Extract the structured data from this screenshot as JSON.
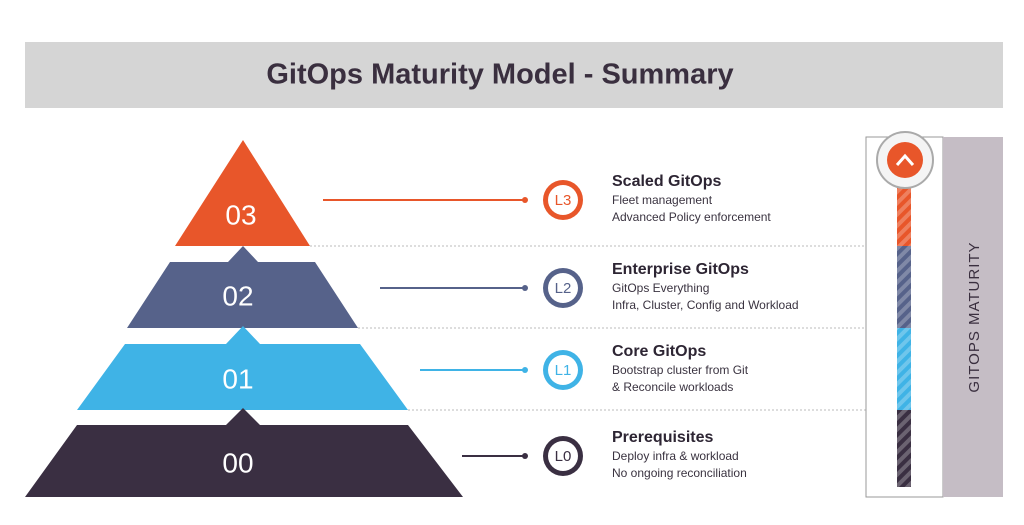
{
  "header": {
    "title": "GitOps Maturity Model - Summary"
  },
  "levels": [
    {
      "number": "03",
      "badge": "L3",
      "title": "Scaled GitOps",
      "lines": [
        "Fleet management",
        "Advanced Policy enforcement"
      ]
    },
    {
      "number": "02",
      "badge": "L2",
      "title": "Enterprise GitOps",
      "lines": [
        "GitOps Everything",
        "Infra, Cluster, Config and Workload"
      ]
    },
    {
      "number": "01",
      "badge": "L1",
      "title": "Core GitOps",
      "lines": [
        "Bootstrap cluster from Git",
        "& Reconcile workloads"
      ]
    },
    {
      "number": "00",
      "badge": "L0",
      "title": "Prerequisites",
      "lines": [
        "Deploy infra & workload",
        "No ongoing reconciliation"
      ]
    }
  ],
  "side_label": "GITOPS MATURITY"
}
